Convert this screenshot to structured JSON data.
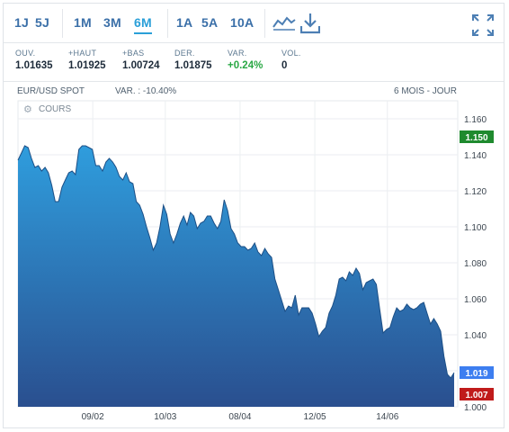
{
  "toolbar": {
    "periods": [
      "1J",
      "5J",
      "1M",
      "3M",
      "6M",
      "1A",
      "5A",
      "10A"
    ],
    "active_period": "6M",
    "icons": [
      "chart-type-icon",
      "download-icon",
      "expand-icon"
    ]
  },
  "stats": [
    {
      "label": "OUV.",
      "value": "1.01635"
    },
    {
      "label": "+HAUT",
      "value": "1.01925"
    },
    {
      "label": "+BAS",
      "value": "1.00724"
    },
    {
      "label": "DER.",
      "value": "1.01875"
    },
    {
      "label": "VAR.",
      "value": "+0.24%"
    },
    {
      "label": "VOL.",
      "value": "0"
    }
  ],
  "chart_head": {
    "instrument": "EUR/USD SPOT",
    "variation": "VAR. : -10.40%",
    "range": "6 MOIS - JOUR",
    "legend": "COURS"
  },
  "colors": {
    "accent": "#2a9fd8",
    "area_top": "#2f9ddd",
    "area_bottom": "#2a4f8f",
    "badge_high": "#1f8a2e",
    "badge_last": "#3d7ef0",
    "badge_low": "#c01b1b"
  },
  "chart_data": {
    "type": "area",
    "ylim": [
      1.0,
      1.17
    ],
    "yticks": [
      "1.160",
      "1.140",
      "1.120",
      "1.100",
      "1.080",
      "1.060",
      "1.040",
      "1.020",
      "1.000"
    ],
    "xticks": [
      "09/02",
      "10/03",
      "08/04",
      "12/05",
      "14/06"
    ],
    "badges": [
      {
        "value": "1.150",
        "kind": "high"
      },
      {
        "value": "1.019",
        "kind": "last"
      },
      {
        "value": "1.007",
        "kind": "low"
      }
    ],
    "values": [
      1.137,
      1.141,
      1.145,
      1.144,
      1.138,
      1.133,
      1.134,
      1.131,
      1.133,
      1.13,
      1.123,
      1.114,
      1.114,
      1.122,
      1.126,
      1.13,
      1.131,
      1.129,
      1.143,
      1.145,
      1.145,
      1.144,
      1.143,
      1.134,
      1.134,
      1.131,
      1.136,
      1.138,
      1.136,
      1.133,
      1.128,
      1.126,
      1.13,
      1.125,
      1.124,
      1.114,
      1.112,
      1.107,
      1.1,
      1.094,
      1.087,
      1.091,
      1.1,
      1.112,
      1.107,
      1.096,
      1.091,
      1.096,
      1.102,
      1.106,
      1.101,
      1.108,
      1.106,
      1.099,
      1.102,
      1.103,
      1.106,
      1.106,
      1.102,
      1.099,
      1.103,
      1.115,
      1.109,
      1.099,
      1.096,
      1.091,
      1.089,
      1.089,
      1.087,
      1.088,
      1.091,
      1.086,
      1.084,
      1.088,
      1.085,
      1.083,
      1.071,
      1.065,
      1.059,
      1.053,
      1.056,
      1.055,
      1.062,
      1.051,
      1.055,
      1.055,
      1.055,
      1.052,
      1.046,
      1.039,
      1.042,
      1.044,
      1.052,
      1.056,
      1.062,
      1.071,
      1.072,
      1.07,
      1.075,
      1.073,
      1.077,
      1.074,
      1.065,
      1.069,
      1.07,
      1.071,
      1.068,
      1.054,
      1.041,
      1.043,
      1.044,
      1.05,
      1.055,
      1.053,
      1.054,
      1.057,
      1.055,
      1.054,
      1.055,
      1.057,
      1.058,
      1.052,
      1.046,
      1.049,
      1.046,
      1.042,
      1.028,
      1.018,
      1.016,
      1.019
    ]
  }
}
